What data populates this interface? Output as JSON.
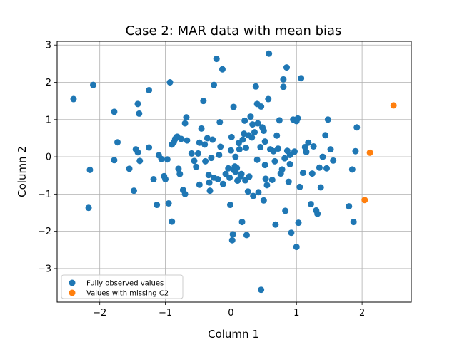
{
  "chart_data": {
    "type": "scatter",
    "title": "Case 2: MAR data with mean bias",
    "xlabel": "Column 1",
    "ylabel": "Column 2",
    "xlim": [
      -2.65,
      2.75
    ],
    "ylim": [
      -3.9,
      3.1
    ],
    "xticks": [
      -2,
      -1,
      0,
      1,
      2
    ],
    "yticks": [
      -3,
      -2,
      -1,
      0,
      1,
      2,
      3
    ],
    "xtick_labels": [
      "−2",
      "−1",
      "0",
      "1",
      "2"
    ],
    "ytick_labels": [
      "−3",
      "−2",
      "−1",
      "0",
      "1",
      "2",
      "3"
    ],
    "grid": true,
    "legend_position": "lower-left",
    "series": [
      {
        "name": "Fully observed values",
        "color": "#1f77b4",
        "points": [
          [
            -2.4,
            1.55
          ],
          [
            -2.1,
            1.93
          ],
          [
            -2.15,
            -0.35
          ],
          [
            -2.17,
            -1.37
          ],
          [
            -1.73,
            0.39
          ],
          [
            -1.78,
            1.21
          ],
          [
            -1.78,
            -0.09
          ],
          [
            -1.55,
            -0.32
          ],
          [
            -1.48,
            -0.91
          ],
          [
            -1.45,
            0.2
          ],
          [
            -1.42,
            0.12
          ],
          [
            -1.39,
            -0.11
          ],
          [
            -1.42,
            1.42
          ],
          [
            -1.4,
            1.16
          ],
          [
            -1.25,
            1.79
          ],
          [
            -1.25,
            0.25
          ],
          [
            -1.18,
            -0.6
          ],
          [
            -1.13,
            -1.29
          ],
          [
            -1.1,
            0.04
          ],
          [
            -1.06,
            -0.06
          ],
          [
            -1.02,
            -0.52
          ],
          [
            -1.0,
            -0.6
          ],
          [
            -0.97,
            -0.07
          ],
          [
            -0.95,
            -1.25
          ],
          [
            -0.93,
            2.0
          ],
          [
            -0.9,
            -1.74
          ],
          [
            -0.9,
            0.33
          ],
          [
            -0.87,
            0.4
          ],
          [
            -0.85,
            0.48
          ],
          [
            -0.82,
            0.54
          ],
          [
            -0.8,
            -0.32
          ],
          [
            -0.78,
            -0.46
          ],
          [
            -0.76,
            0.48
          ],
          [
            -0.73,
            -0.89
          ],
          [
            -0.7,
            -1.0
          ],
          [
            -0.68,
            1.06
          ],
          [
            -0.7,
            0.9
          ],
          [
            -0.67,
            0.44
          ],
          [
            -0.6,
            0.09
          ],
          [
            -0.56,
            -0.11
          ],
          [
            -0.53,
            -0.27
          ],
          [
            -0.5,
            0.09
          ],
          [
            -0.48,
            -0.75
          ],
          [
            -0.48,
            0.38
          ],
          [
            -0.45,
            0.76
          ],
          [
            -0.42,
            1.5
          ],
          [
            -0.4,
            0.33
          ],
          [
            -0.39,
            -0.12
          ],
          [
            -0.36,
            0.5
          ],
          [
            -0.34,
            -0.49
          ],
          [
            -0.33,
            -0.69
          ],
          [
            -0.32,
            -0.91
          ],
          [
            -0.3,
            -0.03
          ],
          [
            -0.28,
            0.46
          ],
          [
            -0.26,
            -0.56
          ],
          [
            -0.26,
            1.93
          ],
          [
            -0.22,
            2.63
          ],
          [
            -0.2,
            -0.6
          ],
          [
            -0.18,
            0.05
          ],
          [
            -0.17,
            0.93
          ],
          [
            -0.16,
            0.27
          ],
          [
            -0.13,
            2.35
          ],
          [
            -0.12,
            -0.73
          ],
          [
            -0.08,
            -0.46
          ],
          [
            -0.04,
            -0.31
          ],
          [
            -0.02,
            -0.56
          ],
          [
            -0.01,
            -1.29
          ],
          [
            0.0,
            0.17
          ],
          [
            0.01,
            0.53
          ],
          [
            0.02,
            -2.24
          ],
          [
            0.03,
            -2.08
          ],
          [
            0.04,
            -0.35
          ],
          [
            0.04,
            1.34
          ],
          [
            0.06,
            -0.26
          ],
          [
            0.07,
            0.0
          ],
          [
            0.07,
            -0.4
          ],
          [
            0.09,
            -0.3
          ],
          [
            0.1,
            -0.64
          ],
          [
            0.12,
            0.37
          ],
          [
            0.13,
            0.2
          ],
          [
            0.15,
            -0.52
          ],
          [
            0.16,
            -0.46
          ],
          [
            0.17,
            -1.75
          ],
          [
            0.18,
            0.46
          ],
          [
            0.2,
            0.62
          ],
          [
            0.21,
            0.97
          ],
          [
            0.22,
            -0.63
          ],
          [
            0.23,
            0.24
          ],
          [
            0.24,
            -2.1
          ],
          [
            0.26,
            -0.93
          ],
          [
            0.27,
            0.58
          ],
          [
            0.28,
            -0.53
          ],
          [
            0.3,
            1.08
          ],
          [
            0.32,
            0.52
          ],
          [
            0.33,
            0.87
          ],
          [
            0.34,
            -1.05
          ],
          [
            0.36,
            0.66
          ],
          [
            0.38,
            1.89
          ],
          [
            0.4,
            -0.08
          ],
          [
            0.41,
            0.9
          ],
          [
            0.42,
            -0.95
          ],
          [
            0.45,
            0.26
          ],
          [
            0.46,
            1.35
          ],
          [
            0.48,
            0.79
          ],
          [
            0.5,
            -1.17
          ],
          [
            0.5,
            0.7
          ],
          [
            0.52,
            0.41
          ],
          [
            0.53,
            -0.59
          ],
          [
            0.55,
            -0.76
          ],
          [
            0.57,
            1.55
          ],
          [
            0.58,
            2.77
          ],
          [
            0.6,
            0.2
          ],
          [
            0.63,
            -0.62
          ],
          [
            0.65,
            0.15
          ],
          [
            0.67,
            -0.12
          ],
          [
            0.68,
            -1.82
          ],
          [
            0.7,
            0.57
          ],
          [
            0.72,
            0.22
          ],
          [
            0.74,
            0.98
          ],
          [
            0.76,
            -0.45
          ],
          [
            0.78,
            -0.34
          ],
          [
            0.8,
            2.08
          ],
          [
            0.82,
            -0.04
          ],
          [
            0.83,
            -1.45
          ],
          [
            0.85,
            2.4
          ],
          [
            0.86,
            0.16
          ],
          [
            0.88,
            -0.67
          ],
          [
            0.9,
            0.05
          ],
          [
            0.92,
            -2.04
          ],
          [
            0.95,
            1.0
          ],
          [
            0.97,
            0.14
          ],
          [
            1.0,
            0.96
          ],
          [
            1.02,
            1.03
          ],
          [
            1.03,
            -1.77
          ],
          [
            1.05,
            -0.81
          ],
          [
            1.07,
            2.11
          ],
          [
            1.1,
            -0.43
          ],
          [
            1.13,
            0.26
          ],
          [
            1.15,
            0.13
          ],
          [
            1.18,
            0.38
          ],
          [
            1.22,
            -1.27
          ],
          [
            1.24,
            -0.45
          ],
          [
            1.26,
            0.28
          ],
          [
            1.3,
            -1.44
          ],
          [
            1.32,
            -1.53
          ],
          [
            1.35,
            -0.29
          ],
          [
            1.37,
            -0.82
          ],
          [
            1.4,
            0.0
          ],
          [
            1.44,
            0.58
          ],
          [
            1.46,
            -0.31
          ],
          [
            1.48,
            1.0
          ],
          [
            1.52,
            0.2
          ],
          [
            1.56,
            -0.1
          ],
          [
            1.8,
            -1.33
          ],
          [
            1.85,
            -0.34
          ],
          [
            1.87,
            -1.75
          ],
          [
            1.9,
            0.15
          ],
          [
            1.92,
            0.79
          ],
          [
            0.4,
            1.42
          ],
          [
            0.52,
            -0.22
          ],
          [
            1.0,
            -2.42
          ],
          [
            0.46,
            -3.57
          ],
          [
            0.8,
            1.88
          ],
          [
            0.9,
            -0.2
          ]
        ]
      },
      {
        "name": "Values with missing C2",
        "color": "#ff7f0e",
        "points": [
          [
            2.48,
            1.38
          ],
          [
            2.12,
            0.11
          ],
          [
            2.04,
            -1.16
          ]
        ]
      }
    ]
  }
}
